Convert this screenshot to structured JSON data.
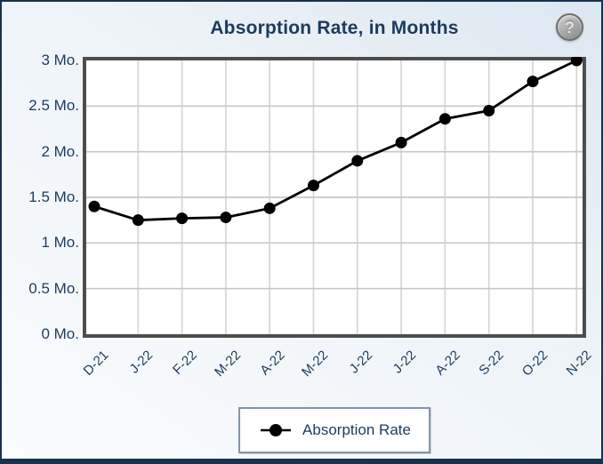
{
  "widget": {
    "title": "Absorption Rate, in Months",
    "help_icon_glyph": "?"
  },
  "legend": {
    "label": "Absorption Rate"
  },
  "colors": {
    "accent_navy": "#1c3b5e",
    "frame_navy": "#16324e",
    "plot_border_gray": "#4d4d4d",
    "gridline_gray": "#cccccc",
    "series_black": "#000000",
    "plot_background": "#ffffff",
    "legend_border": "#8494a8"
  },
  "chart_data": {
    "type": "line",
    "title": "Absorption Rate, in Months",
    "categories": [
      "D-21",
      "J-22",
      "F-22",
      "M-22",
      "A-22",
      "M-22",
      "J-22",
      "J-22",
      "A-22",
      "S-22",
      "O-22",
      "N-22"
    ],
    "series": [
      {
        "name": "Absorption Rate",
        "values": [
          1.4,
          1.25,
          1.27,
          1.28,
          1.38,
          1.63,
          1.9,
          2.1,
          2.36,
          2.45,
          2.77,
          3.0
        ]
      }
    ],
    "xlabel": "",
    "ylabel": "",
    "ylim": [
      0,
      3
    ],
    "ytick_step": 0.5,
    "ytick_labels": [
      "0 Mo.",
      "0.5 Mo.",
      "1 Mo.",
      "1.5 Mo.",
      "2 Mo.",
      "2.5 Mo.",
      "3 Mo."
    ],
    "grid": true,
    "marker": "circle",
    "legend_position": "bottom"
  }
}
